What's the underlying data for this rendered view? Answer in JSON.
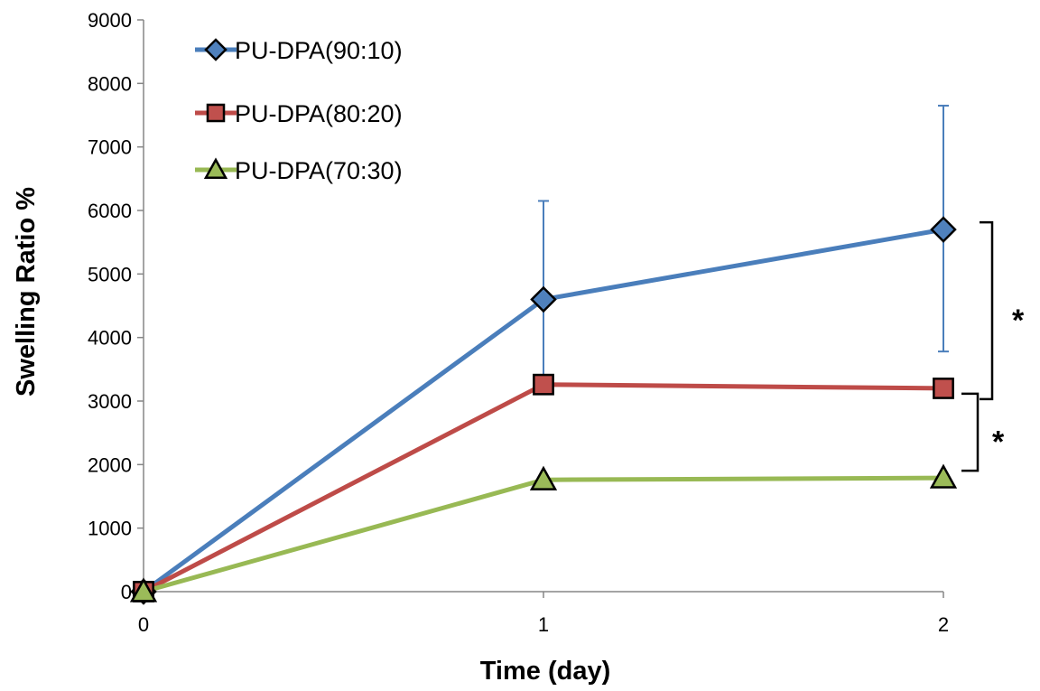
{
  "chart_data": {
    "type": "line",
    "title": "",
    "xlabel": "Time (day)",
    "ylabel": "Swelling Ratio %",
    "x": [
      0,
      1,
      2
    ],
    "x_ticks": [
      "0",
      "1",
      "2"
    ],
    "xlim": [
      0,
      2
    ],
    "ylim": [
      0,
      9000
    ],
    "y_ticks": [
      0,
      1000,
      2000,
      3000,
      4000,
      5000,
      6000,
      7000,
      8000,
      9000
    ],
    "grid": false,
    "legend_position": "top-left",
    "series": [
      {
        "name": "PU-DPA(90:10)",
        "color": "#4a7ebb",
        "marker": "diamond",
        "marker_color": "#4f81bd",
        "values": [
          0,
          4600,
          5700
        ],
        "error_upper": [
          null,
          6150,
          7650
        ],
        "error_lower": [
          null,
          3300,
          3780
        ]
      },
      {
        "name": "PU-DPA(80:20)",
        "color": "#be4b48",
        "marker": "square",
        "marker_color": "#c0504d",
        "values": [
          0,
          3260,
          3200
        ]
      },
      {
        "name": "PU-DPA(70:30)",
        "color": "#98b954",
        "marker": "triangle",
        "marker_color": "#9bbb59",
        "values": [
          0,
          1760,
          1790
        ]
      }
    ],
    "annotations": [
      {
        "text": "*",
        "between": [
          "PU-DPA(90:10)",
          "PU-DPA(80:20)"
        ]
      },
      {
        "text": "*",
        "between": [
          "PU-DPA(80:20)",
          "PU-DPA(70:30)"
        ]
      }
    ]
  }
}
